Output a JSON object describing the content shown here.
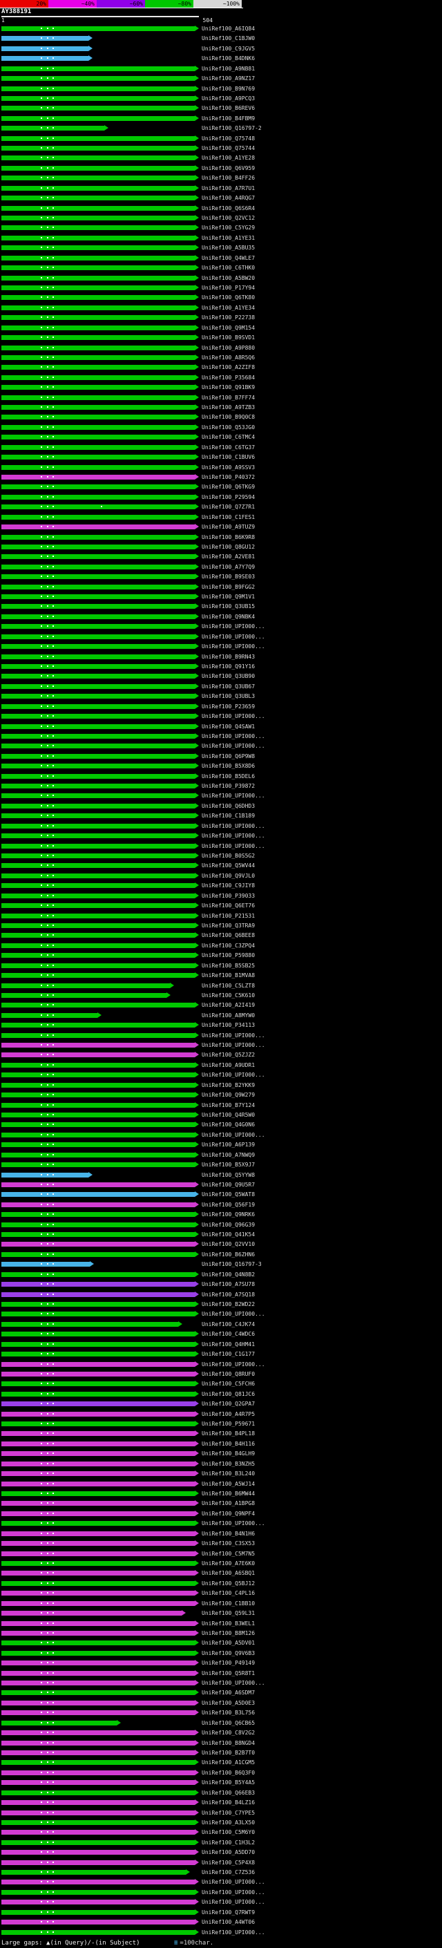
{
  "header": {
    "query_name": "AY388191",
    "ruler_start": "1",
    "ruler_end": "504"
  },
  "footer": {
    "large_gaps_label": "Large gaps: ▲(in Query)/-(in Subject)",
    "scale_glyph": "≡",
    "scale_text": "=100char."
  },
  "chart_data": {
    "type": "bar",
    "title": "AY388191",
    "xlabel": "",
    "x_range": [
      1,
      504
    ],
    "legend_position": "top",
    "key": [
      {
        "label": "20%",
        "color": "#e80000"
      },
      {
        "label": "~40%",
        "color": "#e800e8"
      },
      {
        "label": "~60%",
        "color": "#9000e8"
      },
      {
        "label": "~80%",
        "color": "#00c800"
      },
      {
        "label": "~100%",
        "color": "#d8d8d8"
      }
    ],
    "colors": {
      "g": "#00c800",
      "m": "#d23cd2",
      "p": "#9a40e8",
      "c": "#48b4e8"
    },
    "label_prefix": "UniRef100_",
    "default_gap_dots": [
      102,
      118,
      134
    ],
    "rows": [
      [
        "A6IQ84",
        "g",
        504
      ],
      [
        "C1BJW0",
        "c",
        226
      ],
      [
        "C9JGV5",
        "c",
        226
      ],
      [
        "B4DNK6",
        "c",
        226
      ],
      [
        "A9NB81",
        "g",
        504
      ],
      [
        "A9NZ17",
        "g",
        504
      ],
      [
        "B9N769",
        "g",
        504
      ],
      [
        "A9PCQ3",
        "g",
        504
      ],
      [
        "B6REV6",
        "g",
        504
      ],
      [
        "B4FBM9",
        "g",
        504
      ],
      [
        "Q16797-2",
        "g",
        268
      ],
      [
        "Q75748",
        "g",
        504
      ],
      [
        "Q75744",
        "g",
        504
      ],
      [
        "A1YE28",
        "g",
        504
      ],
      [
        "Q6V959",
        "g",
        504
      ],
      [
        "B4FF26",
        "g",
        504
      ],
      [
        "A7R7U1",
        "g",
        504
      ],
      [
        "A4RQG7",
        "g",
        504
      ],
      [
        "Q6S6R4",
        "g",
        504
      ],
      [
        "Q2VC12",
        "g",
        504
      ],
      [
        "C5YG29",
        "g",
        504
      ],
      [
        "A1YE31",
        "g",
        504
      ],
      [
        "A5BU35",
        "g",
        504
      ],
      [
        "Q4WLE7",
        "g",
        504
      ],
      [
        "C6THK0",
        "g",
        504
      ],
      [
        "A5BW20",
        "g",
        504
      ],
      [
        "P17Y94",
        "g",
        504
      ],
      [
        "Q6TK80",
        "g",
        504
      ],
      [
        "A1YE34",
        "g",
        504
      ],
      [
        "P22738",
        "g",
        504
      ],
      [
        "Q9M154",
        "g",
        504
      ],
      [
        "B9SVD1",
        "g",
        504
      ],
      [
        "A9P880",
        "g",
        504
      ],
      [
        "A8R5Q6",
        "g",
        504
      ],
      [
        "A2ZIF8",
        "g",
        504
      ],
      [
        "P35684",
        "g",
        504
      ],
      [
        "Q91BK9",
        "g",
        504
      ],
      [
        "B7FF74",
        "g",
        504
      ],
      [
        "A9TZB3",
        "g",
        504
      ],
      [
        "B9Q0C8",
        "g",
        504
      ],
      [
        "Q53JG0",
        "g",
        504
      ],
      [
        "C6TMC4",
        "g",
        504
      ],
      [
        "C6TG37",
        "g",
        504
      ],
      [
        "C1BUV6",
        "g",
        504
      ],
      [
        "A9SSV3",
        "g",
        504
      ],
      [
        "P40372",
        "m",
        504
      ],
      [
        "Q6TKG9",
        "g",
        504
      ],
      [
        "P29594",
        "g",
        504
      ],
      [
        "Q7Z7R1",
        "g",
        504,
        [
          102,
          118,
          134,
          260
        ]
      ],
      [
        "C1FES1",
        "g",
        504
      ],
      [
        "A9TUZ9",
        "m",
        504
      ],
      [
        "B6K9R8",
        "g",
        504
      ],
      [
        "Q8GU12",
        "g",
        504
      ],
      [
        "A2VE81",
        "g",
        504
      ],
      [
        "A7Y7Q9",
        "g",
        504
      ],
      [
        "B9SE03",
        "g",
        504
      ],
      [
        "B9FGG2",
        "g",
        504
      ],
      [
        "Q9M1V1",
        "g",
        504
      ],
      [
        "Q3UB15",
        "g",
        504
      ],
      [
        "Q9NBK4",
        "g",
        504
      ],
      [
        "UPI000...",
        "g",
        504
      ],
      [
        "UPI000...",
        "g",
        504
      ],
      [
        "UPI000...",
        "g",
        504
      ],
      [
        "B9RN43",
        "g",
        504
      ],
      [
        "Q91Y16",
        "g",
        504
      ],
      [
        "Q3UB90",
        "g",
        504
      ],
      [
        "Q3UB67",
        "g",
        504
      ],
      [
        "Q3UBL3",
        "g",
        504
      ],
      [
        "P23659",
        "g",
        504
      ],
      [
        "UPI000...",
        "g",
        504
      ],
      [
        "Q4SAW1",
        "g",
        504
      ],
      [
        "UPI000...",
        "g",
        504
      ],
      [
        "UPI000...",
        "g",
        504
      ],
      [
        "Q6P9W8",
        "g",
        504
      ],
      [
        "B5X8D6",
        "g",
        504
      ],
      [
        "B5DEL6",
        "g",
        504
      ],
      [
        "P39872",
        "g",
        504
      ],
      [
        "UPI000...",
        "g",
        504
      ],
      [
        "Q6DHD3",
        "g",
        504
      ],
      [
        "C1B189",
        "g",
        504
      ],
      [
        "UPI000...",
        "g",
        504
      ],
      [
        "UPI000...",
        "g",
        504
      ],
      [
        "UPI000...",
        "g",
        504
      ],
      [
        "B0S5G2",
        "g",
        504
      ],
      [
        "Q5WV44",
        "g",
        504
      ],
      [
        "Q9VJL0",
        "g",
        504
      ],
      [
        "C9JIY8",
        "g",
        504
      ],
      [
        "P39033",
        "g",
        504
      ],
      [
        "Q6ET76",
        "g",
        504
      ],
      [
        "P21531",
        "g",
        504
      ],
      [
        "Q3TRA9",
        "g",
        504
      ],
      [
        "Q6BEE8",
        "g",
        504
      ],
      [
        "C3ZPQ4",
        "g",
        504
      ],
      [
        "P59880",
        "g",
        504
      ],
      [
        "B5SB25",
        "g",
        504
      ],
      [
        "B1MVA8",
        "g",
        504
      ],
      [
        "C5LZT8",
        "g",
        440
      ],
      [
        "C5K610",
        "g",
        430
      ],
      [
        "A2I419",
        "g",
        504
      ],
      [
        "A8MYW0",
        "g",
        250
      ],
      [
        "P34113",
        "g",
        504
      ],
      [
        "UPI000...",
        "g",
        504
      ],
      [
        "UPI000...",
        "m",
        504
      ],
      [
        "Q5ZJZ2",
        "m",
        504
      ],
      [
        "A9UDR1",
        "g",
        504
      ],
      [
        "UPI000...",
        "g",
        504
      ],
      [
        "B2YKK9",
        "g",
        504
      ],
      [
        "Q9W279",
        "g",
        504
      ],
      [
        "B7Y124",
        "g",
        504
      ],
      [
        "Q4R5W0",
        "g",
        504
      ],
      [
        "Q4G0N6",
        "g",
        504
      ],
      [
        "UPI000...",
        "g",
        504
      ],
      [
        "A6P139",
        "g",
        504
      ],
      [
        "A7NWQ9",
        "g",
        504
      ],
      [
        "B5X9J7",
        "g",
        504
      ],
      [
        "Q5YYW8",
        "c",
        226
      ],
      [
        "Q9U5R7",
        "m",
        504
      ],
      [
        "Q5WAT8",
        "c",
        504
      ],
      [
        "Q56F19",
        "m",
        504
      ],
      [
        "Q9NRK6",
        "g",
        504
      ],
      [
        "Q96G39",
        "g",
        504
      ],
      [
        "Q41K54",
        "g",
        504
      ],
      [
        "Q2VV10",
        "m",
        504
      ],
      [
        "B6ZHN6",
        "g",
        504
      ],
      [
        "Q16797-3",
        "c",
        230
      ],
      [
        "Q4N8B2",
        "g",
        504
      ],
      [
        "A7SU78",
        "p",
        504
      ],
      [
        "A7SQ18",
        "p",
        504
      ],
      [
        "B2WD22",
        "g",
        504
      ],
      [
        "UPI000...",
        "g",
        504
      ],
      [
        "C4JK74",
        "g",
        460
      ],
      [
        "C4WDC6",
        "g",
        504
      ],
      [
        "Q4HM41",
        "g",
        504
      ],
      [
        "C1G177",
        "g",
        504
      ],
      [
        "UPI000...",
        "m",
        504
      ],
      [
        "Q8RUF0",
        "m",
        504
      ],
      [
        "C5FCH6",
        "g",
        504
      ],
      [
        "Q81JC6",
        "g",
        504
      ],
      [
        "Q2GPA7",
        "p",
        504
      ],
      [
        "A4R7P5",
        "m",
        504
      ],
      [
        "P59671",
        "g",
        504
      ],
      [
        "B4PL18",
        "m",
        504
      ],
      [
        "B4H116",
        "m",
        504
      ],
      [
        "B4GLH9",
        "m",
        504
      ],
      [
        "B3NZH5",
        "m",
        504
      ],
      [
        "B3L240",
        "m",
        504
      ],
      [
        "A5WJ14",
        "m",
        504
      ],
      [
        "B6MW44",
        "g",
        504
      ],
      [
        "A1BPG8",
        "m",
        504
      ],
      [
        "Q9NPF4",
        "m",
        504
      ],
      [
        "UPI000...",
        "g",
        504
      ],
      [
        "B4N1H6",
        "m",
        504
      ],
      [
        "C3SX53",
        "m",
        504
      ],
      [
        "C5M7N5",
        "m",
        504
      ],
      [
        "A7E6K0",
        "g",
        504
      ],
      [
        "A6SBQ1",
        "m",
        504
      ],
      [
        "Q5BJ12",
        "g",
        504
      ],
      [
        "C4PL16",
        "m",
        504
      ],
      [
        "C1BB10",
        "m",
        504
      ],
      [
        "Q59L31",
        "m",
        470
      ],
      [
        "B3WEL1",
        "m",
        504
      ],
      [
        "B8M126",
        "m",
        504
      ],
      [
        "A5DV01",
        "g",
        504
      ],
      [
        "Q9V6B3",
        "g",
        504
      ],
      [
        "P49149",
        "m",
        504
      ],
      [
        "Q5R8T1",
        "m",
        504
      ],
      [
        "UPI000...",
        "m",
        504
      ],
      [
        "A6SDM7",
        "g",
        504
      ],
      [
        "A5D0E3",
        "m",
        504
      ],
      [
        "B3L756",
        "m",
        504
      ],
      [
        "Q6CB65",
        "g",
        300
      ],
      [
        "C8V2G2",
        "m",
        504
      ],
      [
        "B8NGD4",
        "m",
        504
      ],
      [
        "B2B7T0",
        "m",
        504
      ],
      [
        "A1CGM5",
        "g",
        504
      ],
      [
        "B6Q3F0",
        "m",
        504
      ],
      [
        "B5Y4A5",
        "m",
        504
      ],
      [
        "Q66EB3",
        "g",
        504
      ],
      [
        "B4LZ16",
        "m",
        504
      ],
      [
        "C7YPE5",
        "m",
        504
      ],
      [
        "A3LX50",
        "g",
        504
      ],
      [
        "C5M6Y0",
        "m",
        504
      ],
      [
        "C1H3L2",
        "g",
        504
      ],
      [
        "A5DD70",
        "m",
        504
      ],
      [
        "C5P4X8",
        "m",
        504
      ],
      [
        "C7Z536",
        "g",
        480
      ],
      [
        "UPI000...",
        "m",
        504
      ],
      [
        "UPI000...",
        "g",
        504
      ],
      [
        "UPI000...",
        "m",
        504
      ],
      [
        "Q7RWT9",
        "g",
        504
      ],
      [
        "A4WT06",
        "m",
        504
      ],
      [
        "UPI000...",
        "g",
        504
      ]
    ]
  }
}
